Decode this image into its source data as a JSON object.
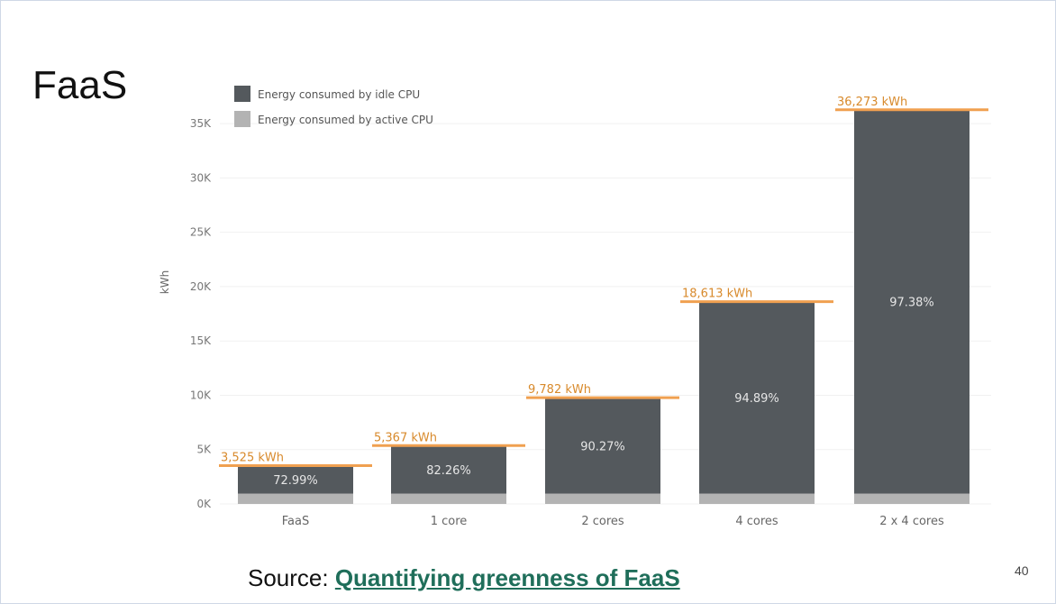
{
  "slide": {
    "title": "FaaS",
    "source_prefix": "Source: ",
    "source_link": "Quantifying greenness of FaaS",
    "page_number": "40"
  },
  "chart_data": {
    "type": "bar",
    "stacked": true,
    "title": "",
    "xlabel": "",
    "ylabel": "kWh",
    "ylim": [
      0,
      37000
    ],
    "yticks": [
      0,
      5000,
      10000,
      15000,
      20000,
      25000,
      30000,
      35000
    ],
    "ytick_labels": [
      "0K",
      "5K",
      "10K",
      "15K",
      "20K",
      "25K",
      "30K",
      "35K"
    ],
    "categories": [
      "FaaS",
      "1 core",
      "2 cores",
      "4 cores",
      "2 x 4 cores"
    ],
    "series": [
      {
        "name": "Energy consumed by idle CPU",
        "values": [
          2573,
          4415,
          8830,
          17662,
          35323
        ],
        "color": "#54595d"
      },
      {
        "name": "Energy consumed by active CPU",
        "values": [
          952,
          952,
          952,
          951,
          950
        ],
        "color": "#b3b3b3"
      }
    ],
    "totals": [
      3525,
      5367,
      9782,
      18613,
      36273
    ],
    "total_labels": [
      "3,525 kWh",
      "5,367 kWh",
      "9,782 kWh",
      "18,613 kWh",
      "36,273 kWh"
    ],
    "idle_percent_labels": [
      "72.99%",
      "82.26%",
      "90.27%",
      "94.89%",
      "97.38%"
    ],
    "total_marker_color": "#f0a050",
    "legend_position": "top-left",
    "grid": true
  }
}
